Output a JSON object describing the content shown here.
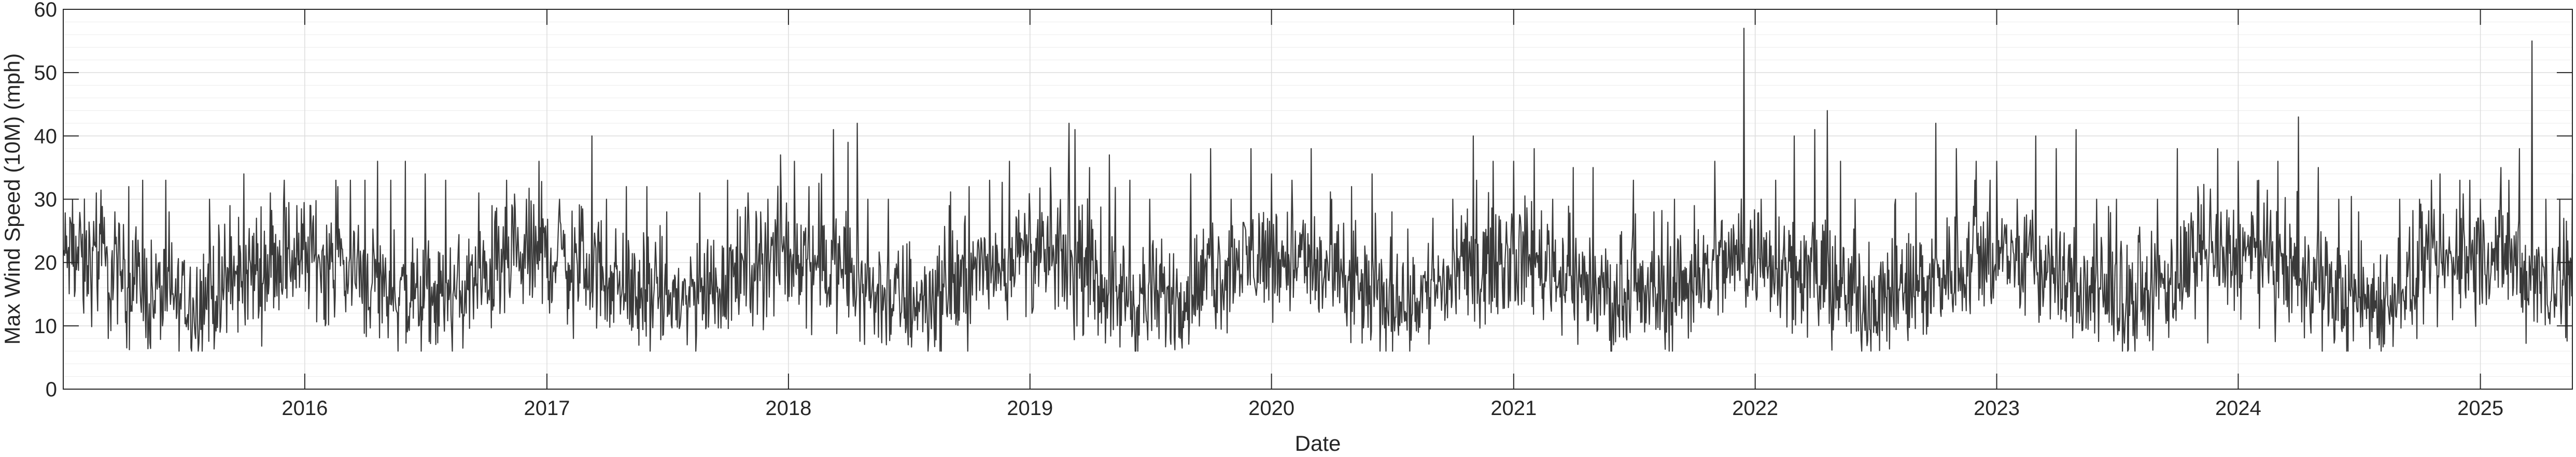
{
  "chart_data": {
    "type": "line",
    "title": "",
    "xlabel": "Date",
    "ylabel": "Max Wind Speed (10M) (mph)",
    "x_range": [
      "2015-01-01",
      "2025-05-20"
    ],
    "ylim": [
      0,
      60
    ],
    "yticks": [
      0,
      10,
      20,
      30,
      40,
      50,
      60
    ],
    "xticks": [
      "2016",
      "2017",
      "2018",
      "2019",
      "2020",
      "2021",
      "2022",
      "2023",
      "2024",
      "2025"
    ],
    "grid": true,
    "minor_grid": true,
    "legend": "none",
    "line_color": "#3a3a3a",
    "series": [
      {
        "values_note": "daily series, one value per day",
        "points": [
          [
            "2015-01-01",
            22
          ],
          [
            "2015-01-15",
            30
          ],
          [
            "2015-02-01",
            12
          ],
          [
            "2015-02-20",
            31
          ],
          [
            "2015-03-10",
            8
          ],
          [
            "2015-03-20",
            28
          ],
          [
            "2015-04-10",
            32
          ],
          [
            "2015-05-01",
            33
          ],
          [
            "2015-05-20",
            12
          ],
          [
            "2015-06-10",
            28
          ],
          [
            "2015-07-01",
            18
          ],
          [
            "2015-07-20",
            8
          ],
          [
            "2015-08-10",
            30
          ],
          [
            "2015-09-10",
            29
          ],
          [
            "2015-10-01",
            34
          ],
          [
            "2015-10-20",
            27
          ],
          [
            "2015-11-10",
            31
          ],
          [
            "2015-12-01",
            33
          ],
          [
            "2015-12-20",
            29
          ],
          [
            "2016-01-10",
            29
          ],
          [
            "2016-02-01",
            10
          ],
          [
            "2016-02-20",
            32
          ],
          [
            "2016-03-10",
            33
          ],
          [
            "2016-04-01",
            33
          ],
          [
            "2016-04-20",
            36
          ],
          [
            "2016-05-10",
            33
          ],
          [
            "2016-06-01",
            36
          ],
          [
            "2016-07-01",
            34
          ],
          [
            "2016-08-01",
            33
          ],
          [
            "2016-09-01",
            12
          ],
          [
            "2016-09-20",
            31
          ],
          [
            "2016-10-10",
            29
          ],
          [
            "2016-11-01",
            33
          ],
          [
            "2016-12-01",
            30
          ],
          [
            "2016-12-20",
            36
          ],
          [
            "2017-01-20",
            30
          ],
          [
            "2017-02-10",
            8
          ],
          [
            "2017-03-10",
            40
          ],
          [
            "2017-04-01",
            30
          ],
          [
            "2017-05-01",
            32
          ],
          [
            "2017-06-01",
            32
          ],
          [
            "2017-07-01",
            28
          ],
          [
            "2017-08-01",
            7
          ],
          [
            "2017-08-20",
            31
          ],
          [
            "2017-10-01",
            33
          ],
          [
            "2017-11-01",
            31
          ],
          [
            "2017-12-01",
            30
          ],
          [
            "2017-12-20",
            37
          ],
          [
            "2018-01-10",
            36
          ],
          [
            "2018-02-01",
            32
          ],
          [
            "2018-02-20",
            34
          ],
          [
            "2018-03-10",
            41
          ],
          [
            "2018-04-01",
            39
          ],
          [
            "2018-04-15",
            42
          ],
          [
            "2018-05-01",
            30
          ],
          [
            "2018-06-01",
            30
          ],
          [
            "2018-07-01",
            7
          ],
          [
            "2018-08-01",
            8
          ],
          [
            "2018-09-01",
            29
          ],
          [
            "2018-10-01",
            32
          ],
          [
            "2018-11-01",
            33
          ],
          [
            "2018-12-01",
            36
          ],
          [
            "2019-01-01",
            28
          ],
          [
            "2019-02-01",
            35
          ],
          [
            "2019-03-01",
            42
          ],
          [
            "2019-03-10",
            41
          ],
          [
            "2019-04-01",
            35
          ],
          [
            "2019-05-01",
            37
          ],
          [
            "2019-06-01",
            33
          ],
          [
            "2019-07-01",
            30
          ],
          [
            "2019-08-01",
            8
          ],
          [
            "2019-09-01",
            34
          ],
          [
            "2019-10-01",
            38
          ],
          [
            "2019-11-01",
            30
          ],
          [
            "2019-12-01",
            38
          ],
          [
            "2020-01-01",
            34
          ],
          [
            "2020-02-01",
            33
          ],
          [
            "2020-03-01",
            38
          ],
          [
            "2020-04-01",
            30
          ],
          [
            "2020-05-01",
            32
          ],
          [
            "2020-06-01",
            34
          ],
          [
            "2020-07-01",
            28
          ],
          [
            "2020-08-01",
            12
          ],
          [
            "2020-09-01",
            27
          ],
          [
            "2020-10-01",
            30
          ],
          [
            "2020-11-01",
            40
          ],
          [
            "2020-12-01",
            36
          ],
          [
            "2021-01-01",
            36
          ],
          [
            "2021-02-01",
            38
          ],
          [
            "2021-03-01",
            30
          ],
          [
            "2021-04-01",
            35
          ],
          [
            "2021-05-01",
            35
          ],
          [
            "2021-06-01",
            7
          ],
          [
            "2021-07-01",
            33
          ],
          [
            "2021-08-01",
            28
          ],
          [
            "2021-09-01",
            30
          ],
          [
            "2021-10-01",
            29
          ],
          [
            "2021-11-01",
            36
          ],
          [
            "2021-12-15",
            57
          ],
          [
            "2022-01-10",
            30
          ],
          [
            "2022-02-01",
            33
          ],
          [
            "2022-03-01",
            40
          ],
          [
            "2022-04-01",
            41
          ],
          [
            "2022-04-20",
            44
          ],
          [
            "2022-05-10",
            36
          ],
          [
            "2022-06-01",
            30
          ],
          [
            "2022-07-01",
            10
          ],
          [
            "2022-08-01",
            30
          ],
          [
            "2022-09-01",
            31
          ],
          [
            "2022-10-01",
            42
          ],
          [
            "2022-11-01",
            38
          ],
          [
            "2022-12-01",
            36
          ],
          [
            "2023-01-01",
            36
          ],
          [
            "2023-02-01",
            30
          ],
          [
            "2023-03-01",
            40
          ],
          [
            "2023-04-01",
            38
          ],
          [
            "2023-05-01",
            41
          ],
          [
            "2023-06-01",
            30
          ],
          [
            "2023-07-01",
            30
          ],
          [
            "2023-08-01",
            8
          ],
          [
            "2023-09-01",
            30
          ],
          [
            "2023-10-01",
            38
          ],
          [
            "2023-11-01",
            32
          ],
          [
            "2023-12-01",
            38
          ],
          [
            "2024-01-01",
            36
          ],
          [
            "2024-02-01",
            33
          ],
          [
            "2024-03-01",
            36
          ],
          [
            "2024-04-01",
            43
          ],
          [
            "2024-05-01",
            35
          ],
          [
            "2024-06-01",
            30
          ],
          [
            "2024-07-01",
            28
          ],
          [
            "2024-08-01",
            7
          ],
          [
            "2024-09-01",
            30
          ],
          [
            "2024-10-01",
            30
          ],
          [
            "2024-11-01",
            34
          ],
          [
            "2024-12-01",
            33
          ],
          [
            "2025-01-01",
            30
          ],
          [
            "2025-02-01",
            35
          ],
          [
            "2025-03-01",
            38
          ],
          [
            "2025-03-20",
            55
          ],
          [
            "2025-04-10",
            30
          ],
          [
            "2025-05-01",
            30
          ],
          [
            "2025-05-20",
            34
          ]
        ]
      }
    ]
  }
}
